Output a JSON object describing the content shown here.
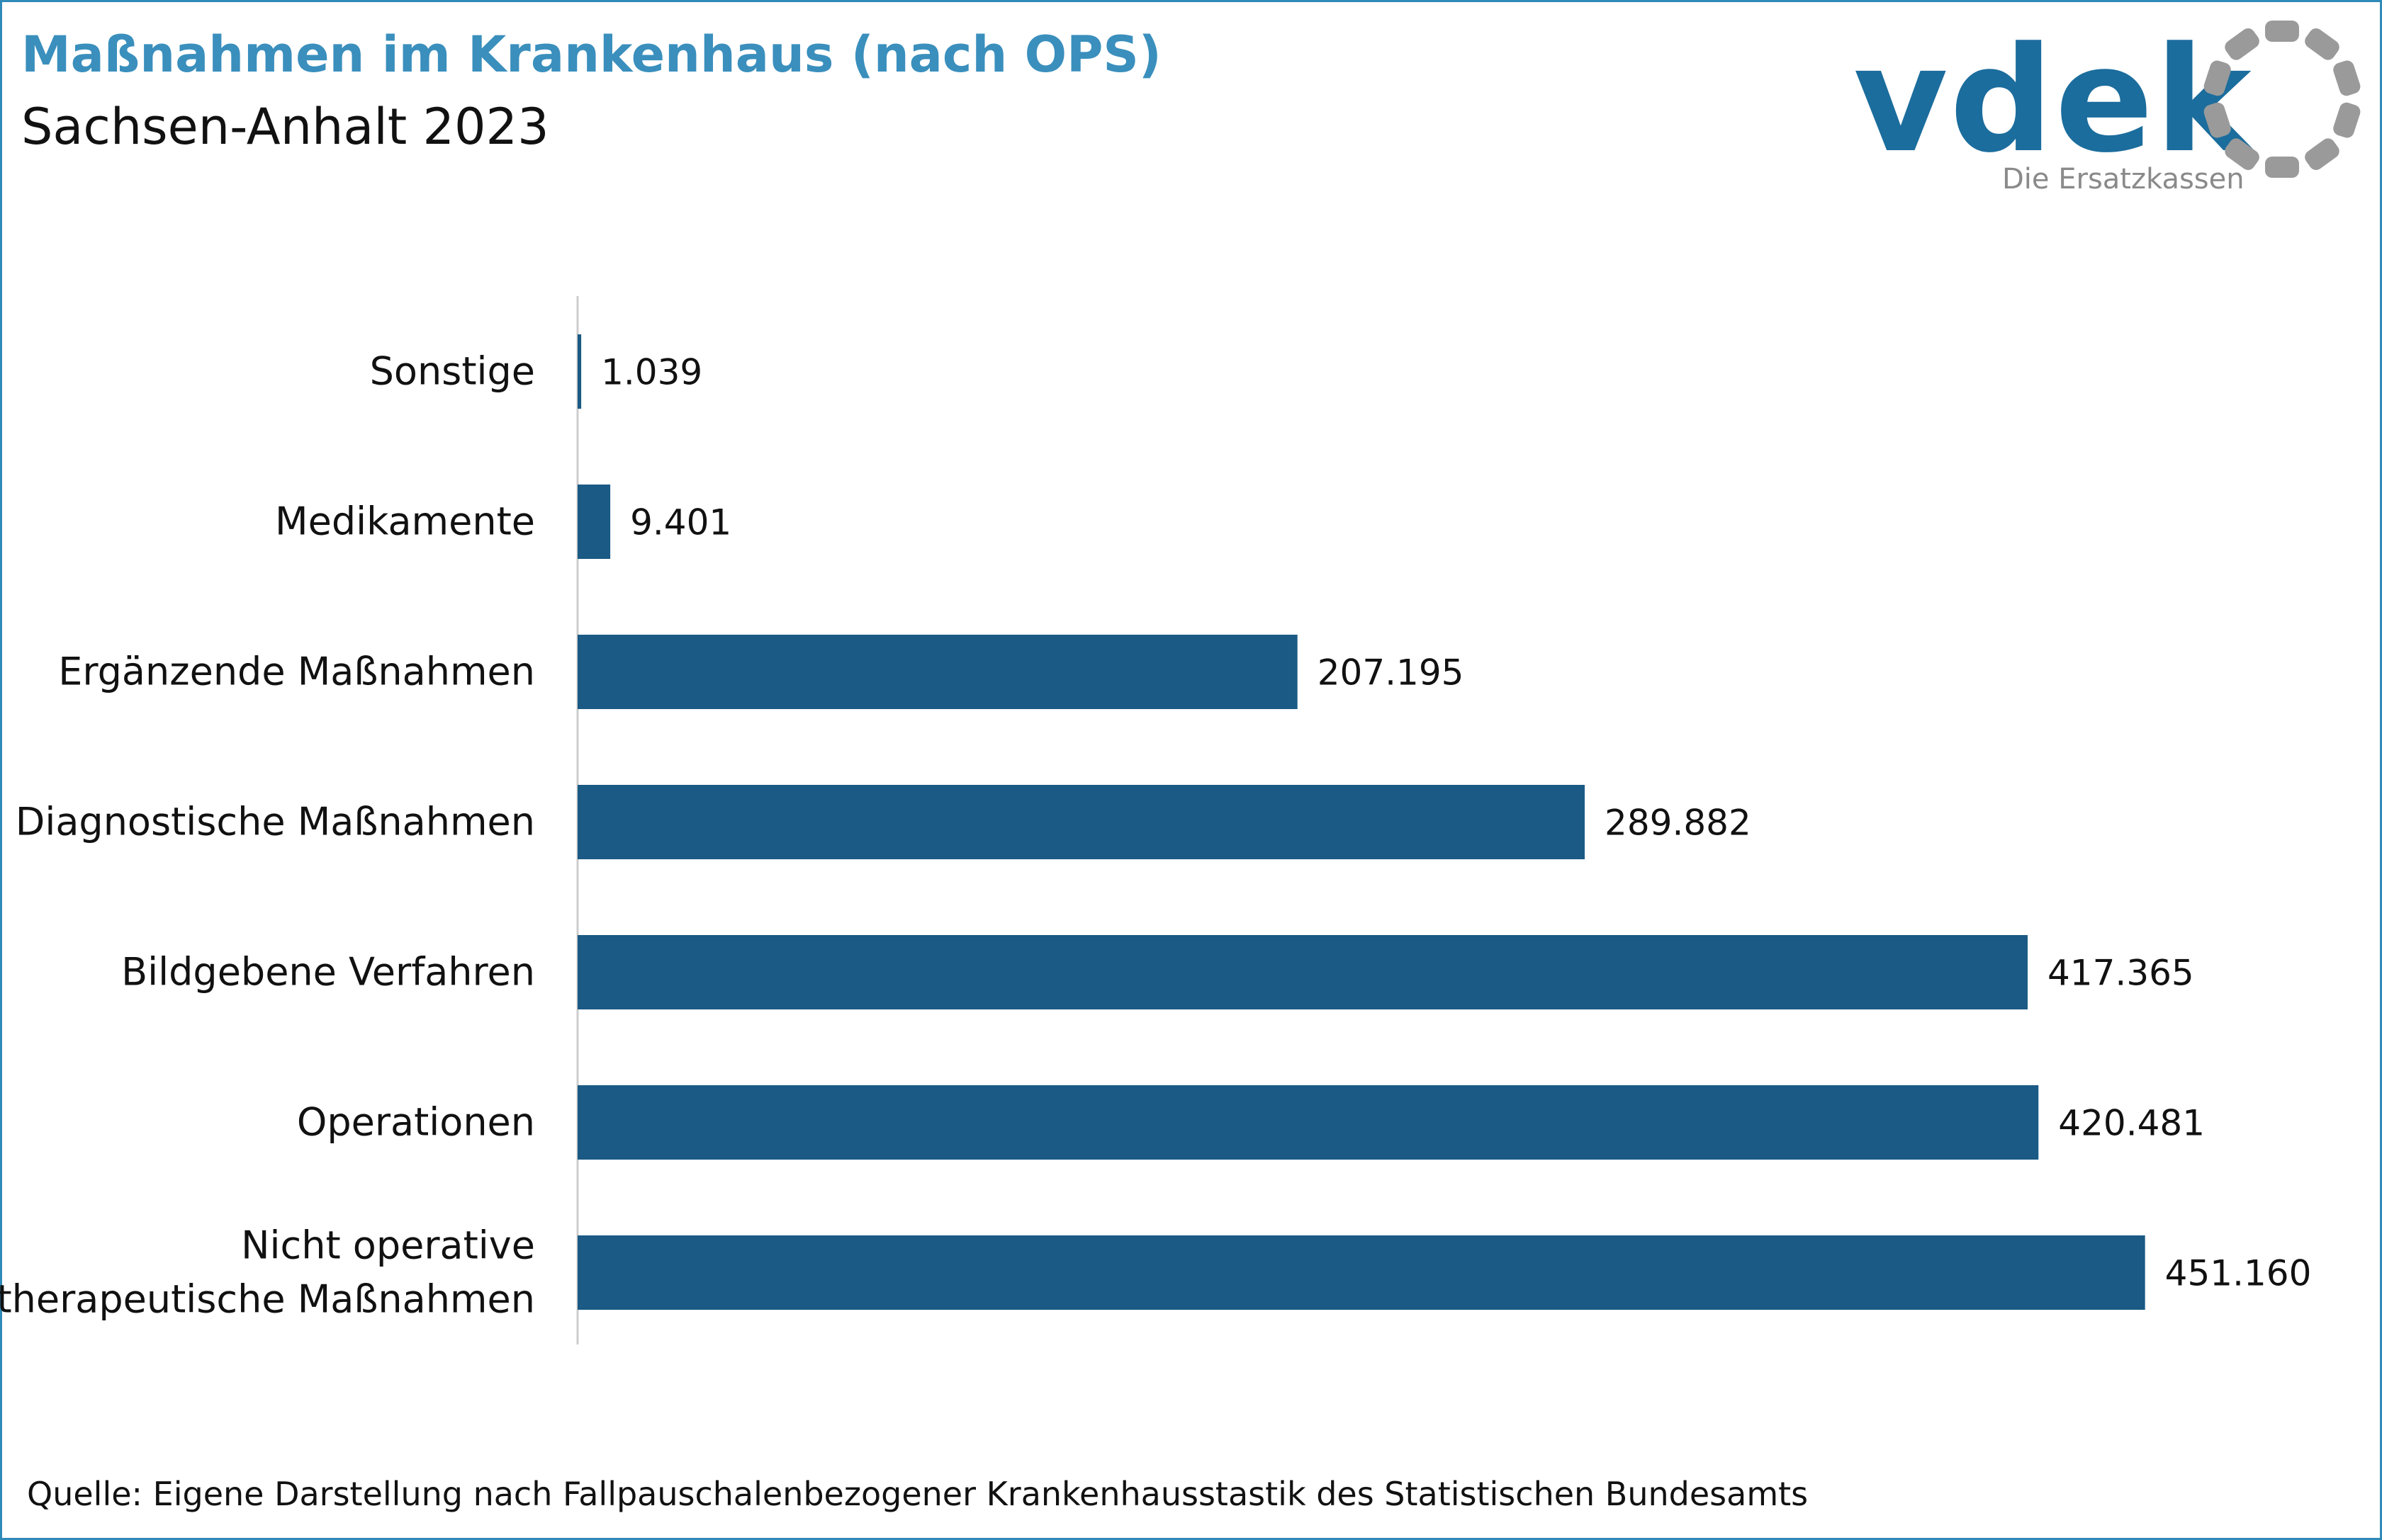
{
  "header": {
    "title": "Maßnahmen im Krankenhaus (nach OPS)",
    "subtitle": "Sachsen-Anhalt 2023"
  },
  "logo": {
    "wordmark": "vdek",
    "tagline": "Die Ersatzkassen",
    "icon": "dotted-ring-logo-icon",
    "colors": {
      "wordmark": "#1b6d9d",
      "ring": "#9a9a9a"
    }
  },
  "chart_data": {
    "type": "bar",
    "orientation": "horizontal",
    "categories": [
      "Sonstige",
      "Medikamente",
      "Ergänzende Maßnahmen",
      "Diagnostische Maßnahmen",
      "Bildgebene Verfahren",
      "Operationen",
      "Nicht operative therapeutische Maßnahmen"
    ],
    "category_lines": [
      [
        "Sonstige"
      ],
      [
        "Medikamente"
      ],
      [
        "Ergänzende Maßnahmen"
      ],
      [
        "Diagnostische Maßnahmen"
      ],
      [
        "Bildgebene Verfahren"
      ],
      [
        "Operationen"
      ],
      [
        "Nicht operative",
        "therapeutische Maßnahmen"
      ]
    ],
    "values": [
      1039,
      9401,
      207195,
      289882,
      417365,
      420481,
      451160
    ],
    "value_labels": [
      "1.039",
      "9.401",
      "207.195",
      "289.882",
      "417.365",
      "420.481",
      "451.160"
    ],
    "xlim": [
      0,
      460000
    ],
    "grid": false,
    "legend": "none",
    "colors": {
      "bar": "#1a5a84",
      "axis": "#cccccc"
    }
  },
  "footer": {
    "source": "Quelle: Eigene Darstellung nach Fallpauschalenbezogener Krankenhausstastik des Statistischen Bundesamts"
  }
}
